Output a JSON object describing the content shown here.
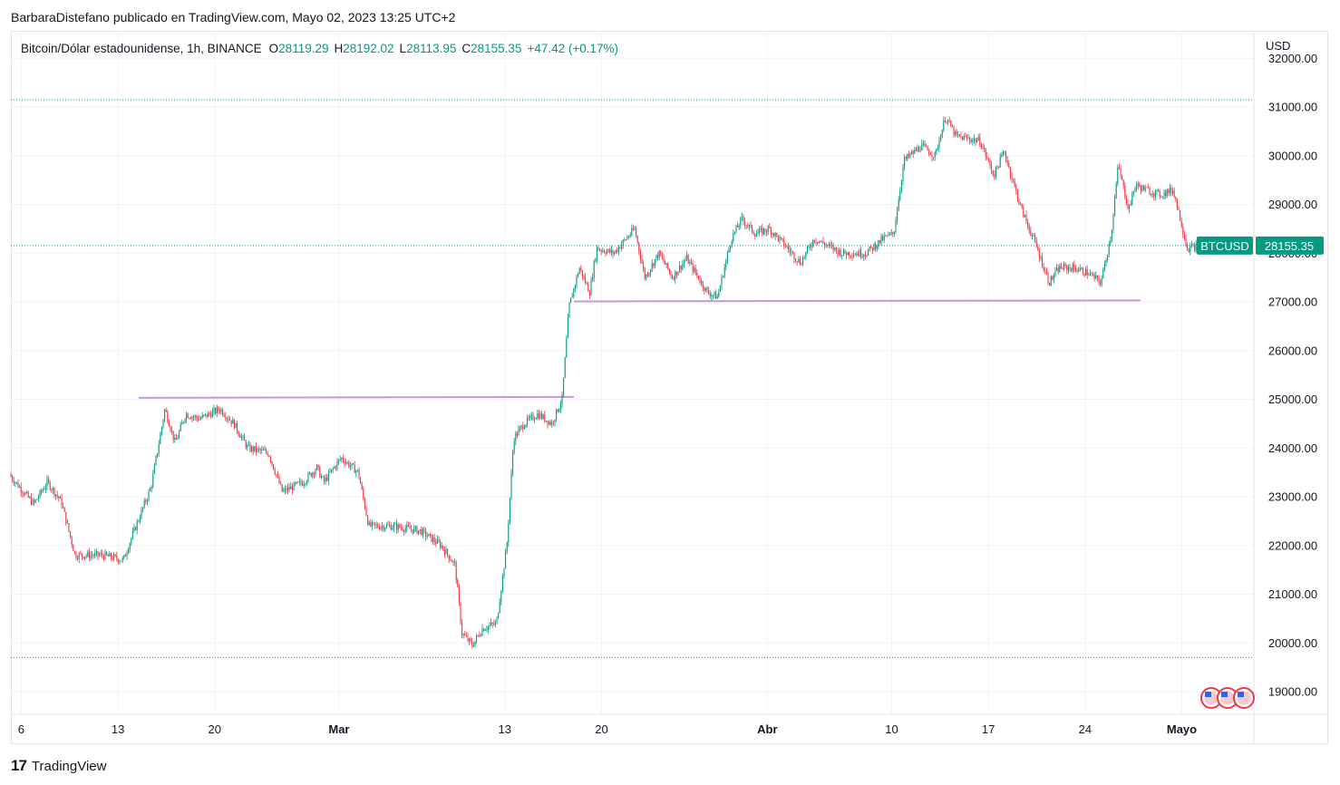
{
  "header": {
    "published_line": "BarbaraDistefano publicado en TradingView.com, Mayo 02, 2023 13:25 UTC+2"
  },
  "legend": {
    "symbol_line": "Bitcoin/Dólar estadounidense, 1h, BINANCE",
    "open_label": "O",
    "open_value": "28119.29",
    "high_label": "H",
    "high_value": "28192.02",
    "low_label": "L",
    "low_value": "28113.95",
    "close_label": "C",
    "close_value": "28155.35",
    "change": "+47.42 (+0.17%)"
  },
  "price_axis": {
    "currency": "USD"
  },
  "footer": {
    "brand": "TradingView",
    "logo_text": "17"
  },
  "colors": {
    "up": "#089981",
    "down": "#f23645",
    "level_line": "#ce93d8",
    "grid": "#f0f3fa",
    "axis_text": "#131722",
    "dotted": "#089981"
  },
  "chart_data": {
    "type": "candlestick",
    "symbol": "BTCUSD",
    "interval": "1h",
    "ylim": [
      18600,
      32000
    ],
    "y_ticks": [
      19000,
      20000,
      21000,
      22000,
      23000,
      24000,
      25000,
      26000,
      27000,
      28000,
      29000,
      30000,
      31000,
      32000
    ],
    "y_tick_labels": [
      "19000.00",
      "20000.00",
      "21000.00",
      "22000.00",
      "23000.00",
      "24000.00",
      "25000.00",
      "26000.00",
      "27000.00",
      "28000.00",
      "29000.00",
      "30000.00",
      "31000.00",
      "32000.00"
    ],
    "x_range": [
      "2023-02-05T06:00",
      "2023-05-02T13:00"
    ],
    "x_ticks": [
      {
        "date": "2023-02-06",
        "label": "6"
      },
      {
        "date": "2023-02-13",
        "label": "13"
      },
      {
        "date": "2023-02-20",
        "label": "20"
      },
      {
        "date": "2023-03-01",
        "label": "Mar"
      },
      {
        "date": "2023-03-13",
        "label": "13"
      },
      {
        "date": "2023-03-20",
        "label": "20"
      },
      {
        "date": "2023-04-01",
        "label": "Abr"
      },
      {
        "date": "2023-04-10",
        "label": "10"
      },
      {
        "date": "2023-04-17",
        "label": "17"
      },
      {
        "date": "2023-04-24",
        "label": "24"
      },
      {
        "date": "2023-05-01",
        "label": "Mayo"
      }
    ],
    "price_path": [
      [
        "2023-02-05T06:00",
        23450
      ],
      [
        "2023-02-07T00:00",
        22850
      ],
      [
        "2023-02-08T00:00",
        23300
      ],
      [
        "2023-02-09T00:00",
        22900
      ],
      [
        "2023-02-10T00:00",
        21800
      ],
      [
        "2023-02-12T00:00",
        21800
      ],
      [
        "2023-02-13T12:00",
        21700
      ],
      [
        "2023-02-14T00:00",
        22100
      ],
      [
        "2023-02-15T12:00",
        23200
      ],
      [
        "2023-02-16T12:00",
        24800
      ],
      [
        "2023-02-17T06:00",
        24100
      ],
      [
        "2023-02-18T00:00",
        24700
      ],
      [
        "2023-02-19T00:00",
        24600
      ],
      [
        "2023-02-20T12:00",
        24800
      ],
      [
        "2023-02-21T12:00",
        24500
      ],
      [
        "2023-02-22T12:00",
        24000
      ],
      [
        "2023-02-24T00:00",
        23900
      ],
      [
        "2023-02-25T00:00",
        23100
      ],
      [
        "2023-02-26T12:00",
        23300
      ],
      [
        "2023-02-27T12:00",
        23600
      ],
      [
        "2023-02-28T00:00",
        23300
      ],
      [
        "2023-03-01T06:00",
        23800
      ],
      [
        "2023-03-02T12:00",
        23500
      ],
      [
        "2023-03-03T06:00",
        22400
      ],
      [
        "2023-03-05T00:00",
        22400
      ],
      [
        "2023-03-07T00:00",
        22300
      ],
      [
        "2023-03-08T12:00",
        22000
      ],
      [
        "2023-03-09T12:00",
        21600
      ],
      [
        "2023-03-10T00:00",
        20200
      ],
      [
        "2023-03-10T18:00",
        19950
      ],
      [
        "2023-03-11T12:00",
        20300
      ],
      [
        "2023-03-12T12:00",
        20400
      ],
      [
        "2023-03-13T06:00",
        22000
      ],
      [
        "2023-03-13T18:00",
        24200
      ],
      [
        "2023-03-14T12:00",
        24500
      ],
      [
        "2023-03-15T12:00",
        24700
      ],
      [
        "2023-03-16T12:00",
        24500
      ],
      [
        "2023-03-17T06:00",
        25000
      ],
      [
        "2023-03-17T18:00",
        26900
      ],
      [
        "2023-03-18T12:00",
        27700
      ],
      [
        "2023-03-19T06:00",
        27200
      ],
      [
        "2023-03-19T18:00",
        28100
      ],
      [
        "2023-03-21T00:00",
        28000
      ],
      [
        "2023-03-22T12:00",
        28500
      ],
      [
        "2023-03-23T06:00",
        27500
      ],
      [
        "2023-03-24T06:00",
        28000
      ],
      [
        "2023-03-25T06:00",
        27500
      ],
      [
        "2023-03-26T06:00",
        27900
      ],
      [
        "2023-03-27T18:00",
        27200
      ],
      [
        "2023-03-28T12:00",
        27100
      ],
      [
        "2023-03-29T12:00",
        28300
      ],
      [
        "2023-03-30T06:00",
        28700
      ],
      [
        "2023-03-31T06:00",
        28400
      ],
      [
        "2023-04-01T06:00",
        28500
      ],
      [
        "2023-04-02T06:00",
        28200
      ],
      [
        "2023-04-03T12:00",
        27800
      ],
      [
        "2023-04-04T12:00",
        28300
      ],
      [
        "2023-04-06T12:00",
        28000
      ],
      [
        "2023-04-08T06:00",
        28000
      ],
      [
        "2023-04-09T12:00",
        28300
      ],
      [
        "2023-04-10T06:00",
        28400
      ],
      [
        "2023-04-11T00:00",
        29900
      ],
      [
        "2023-04-12T06:00",
        30200
      ],
      [
        "2023-04-13T06:00",
        30000
      ],
      [
        "2023-04-14T00:00",
        30800
      ],
      [
        "2023-04-14T18:00",
        30400
      ],
      [
        "2023-04-16T12:00",
        30300
      ],
      [
        "2023-04-17T12:00",
        29600
      ],
      [
        "2023-04-18T06:00",
        30100
      ],
      [
        "2023-04-18T18:00",
        29600
      ],
      [
        "2023-04-19T12:00",
        28900
      ],
      [
        "2023-04-20T12:00",
        28200
      ],
      [
        "2023-04-21T12:00",
        27400
      ],
      [
        "2023-04-22T06:00",
        27700
      ],
      [
        "2023-04-23T06:00",
        27700
      ],
      [
        "2023-04-24T06:00",
        27600
      ],
      [
        "2023-04-25T06:00",
        27400
      ],
      [
        "2023-04-26T00:00",
        28400
      ],
      [
        "2023-04-26T12:00",
        29800
      ],
      [
        "2023-04-27T06:00",
        28900
      ],
      [
        "2023-04-27T18:00",
        29400
      ],
      [
        "2023-04-28T12:00",
        29300
      ],
      [
        "2023-04-29T12:00",
        29200
      ],
      [
        "2023-04-30T12:00",
        29300
      ],
      [
        "2023-05-01T00:00",
        28700
      ],
      [
        "2023-05-01T12:00",
        28100
      ],
      [
        "2023-05-02T13:00",
        28155
      ]
    ],
    "level_lines": [
      {
        "from": "2023-02-14T12:00",
        "to": "2023-03-18T00:00",
        "price": 25030,
        "price_end": 25050
      },
      {
        "from": "2023-03-18T00:00",
        "to": "2023-04-28T00:00",
        "price": 27010,
        "price_end": 27030
      }
    ],
    "dotted_lines": [
      31150,
      28155.35,
      19700
    ],
    "last_price": {
      "symbol_label": "BTCUSD",
      "value_label": "28155.35",
      "value": 28155.35
    }
  }
}
